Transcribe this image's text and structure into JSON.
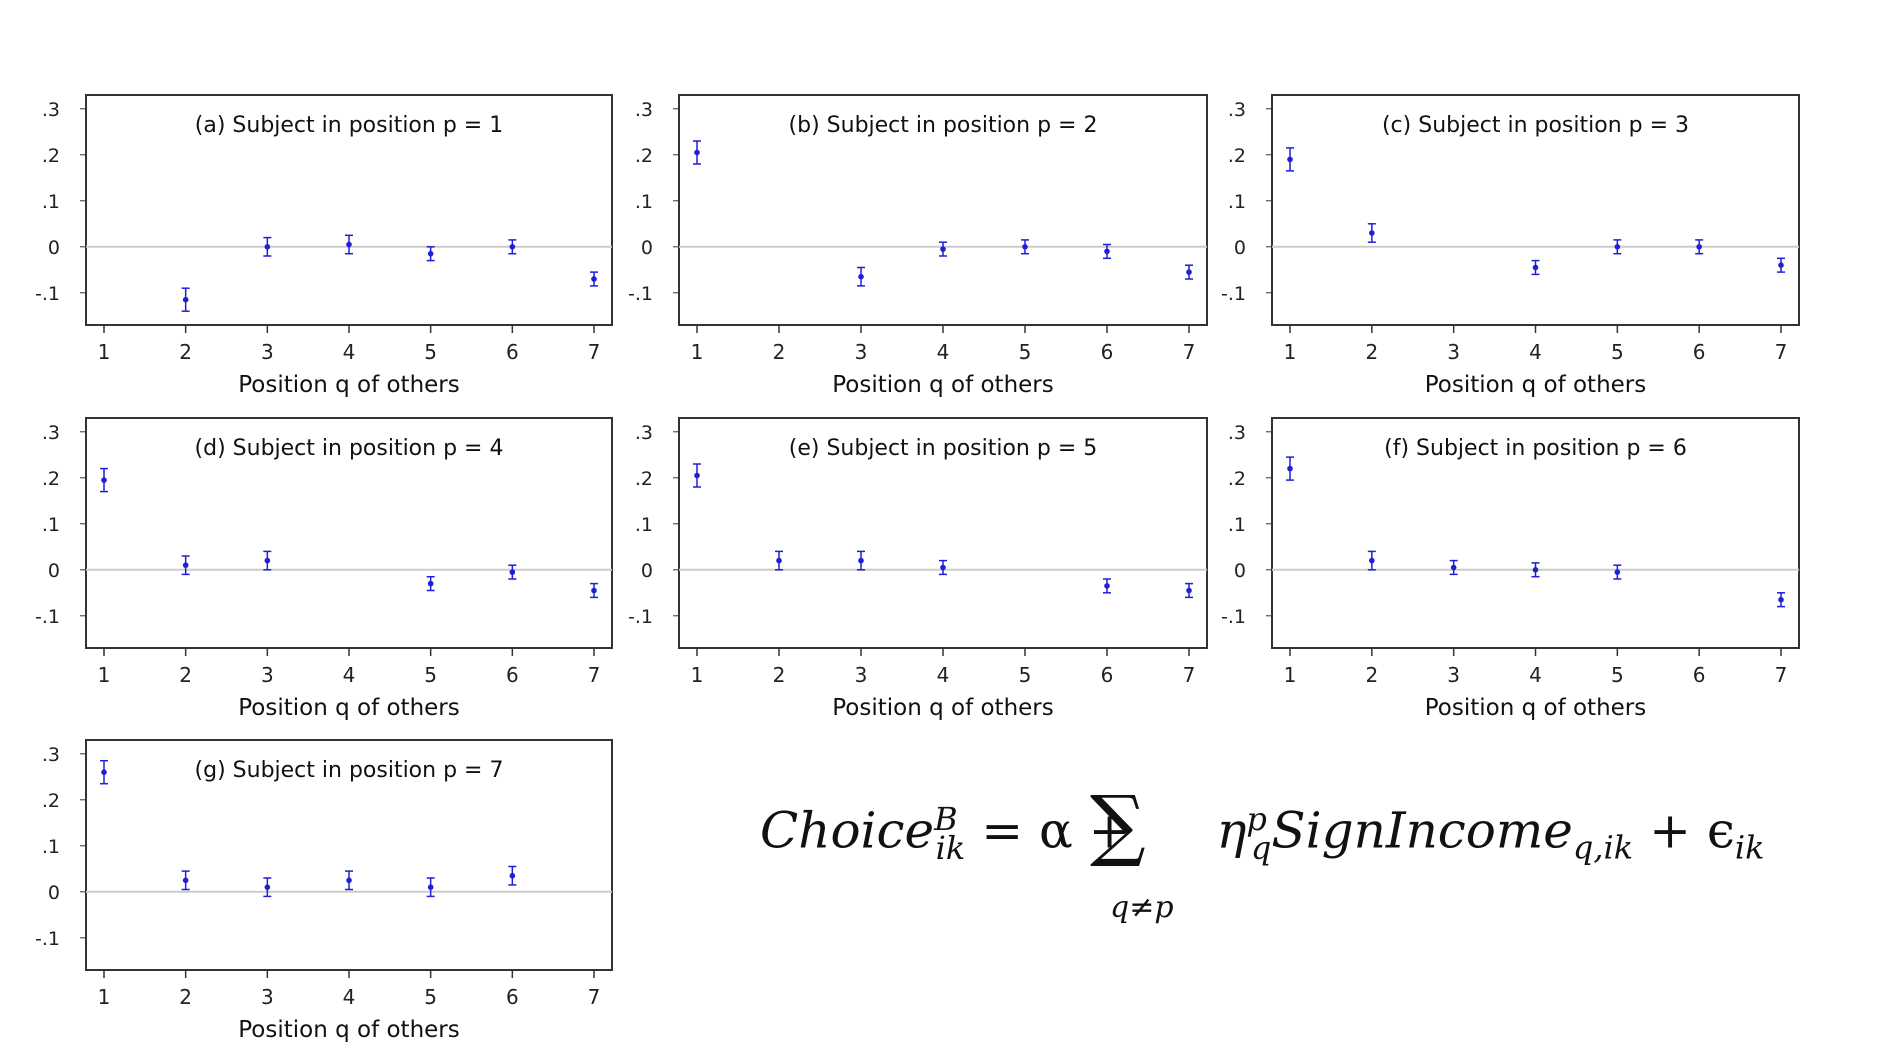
{
  "chart_data": [
    {
      "type": "scatter",
      "title": "(a) Subject in position p = 1",
      "xlabel": "Position q of others",
      "x_ticks": [
        "1",
        "2",
        "3",
        "4",
        "5",
        "6",
        "7"
      ],
      "y_ticks": [
        ".3",
        ".2",
        ".1",
        "0",
        "-.1"
      ],
      "ylim": [
        -0.17,
        0.33
      ],
      "points": [
        {
          "x": 2,
          "y": -0.115,
          "lo": -0.14,
          "hi": -0.09
        },
        {
          "x": 3,
          "y": 0.0,
          "lo": -0.02,
          "hi": 0.02
        },
        {
          "x": 4,
          "y": 0.005,
          "lo": -0.015,
          "hi": 0.025
        },
        {
          "x": 5,
          "y": -0.015,
          "lo": -0.03,
          "hi": 0.0
        },
        {
          "x": 6,
          "y": 0.0,
          "lo": -0.015,
          "hi": 0.015
        },
        {
          "x": 7,
          "y": -0.07,
          "lo": -0.085,
          "hi": -0.055
        }
      ]
    },
    {
      "type": "scatter",
      "title": "(b) Subject in position p = 2",
      "xlabel": "Position q of others",
      "x_ticks": [
        "1",
        "2",
        "3",
        "4",
        "5",
        "6",
        "7"
      ],
      "y_ticks": [
        ".3",
        ".2",
        ".1",
        "0",
        "-.1"
      ],
      "ylim": [
        -0.17,
        0.33
      ],
      "points": [
        {
          "x": 1,
          "y": 0.205,
          "lo": 0.18,
          "hi": 0.23
        },
        {
          "x": 3,
          "y": -0.065,
          "lo": -0.085,
          "hi": -0.045
        },
        {
          "x": 4,
          "y": -0.005,
          "lo": -0.02,
          "hi": 0.01
        },
        {
          "x": 5,
          "y": 0.0,
          "lo": -0.015,
          "hi": 0.015
        },
        {
          "x": 6,
          "y": -0.01,
          "lo": -0.025,
          "hi": 0.005
        },
        {
          "x": 7,
          "y": -0.055,
          "lo": -0.07,
          "hi": -0.04
        }
      ]
    },
    {
      "type": "scatter",
      "title": "(c) Subject in position p = 3",
      "xlabel": "Position q of others",
      "x_ticks": [
        "1",
        "2",
        "3",
        "4",
        "5",
        "6",
        "7"
      ],
      "y_ticks": [
        ".3",
        ".2",
        ".1",
        "0",
        "-.1"
      ],
      "ylim": [
        -0.17,
        0.33
      ],
      "points": [
        {
          "x": 1,
          "y": 0.19,
          "lo": 0.165,
          "hi": 0.215
        },
        {
          "x": 2,
          "y": 0.03,
          "lo": 0.01,
          "hi": 0.05
        },
        {
          "x": 4,
          "y": -0.045,
          "lo": -0.06,
          "hi": -0.03
        },
        {
          "x": 5,
          "y": 0.0,
          "lo": -0.015,
          "hi": 0.015
        },
        {
          "x": 6,
          "y": 0.0,
          "lo": -0.015,
          "hi": 0.015
        },
        {
          "x": 7,
          "y": -0.04,
          "lo": -0.055,
          "hi": -0.025
        }
      ]
    },
    {
      "type": "scatter",
      "title": "(d) Subject in position p = 4",
      "xlabel": "Position q of others",
      "x_ticks": [
        "1",
        "2",
        "3",
        "4",
        "5",
        "6",
        "7"
      ],
      "y_ticks": [
        ".3",
        ".2",
        ".1",
        "0",
        "-.1"
      ],
      "ylim": [
        -0.17,
        0.33
      ],
      "points": [
        {
          "x": 1,
          "y": 0.195,
          "lo": 0.17,
          "hi": 0.22
        },
        {
          "x": 2,
          "y": 0.01,
          "lo": -0.01,
          "hi": 0.03
        },
        {
          "x": 3,
          "y": 0.02,
          "lo": 0.0,
          "hi": 0.04
        },
        {
          "x": 5,
          "y": -0.03,
          "lo": -0.045,
          "hi": -0.015
        },
        {
          "x": 6,
          "y": -0.005,
          "lo": -0.02,
          "hi": 0.01
        },
        {
          "x": 7,
          "y": -0.045,
          "lo": -0.06,
          "hi": -0.03
        }
      ]
    },
    {
      "type": "scatter",
      "title": "(e) Subject in position p = 5",
      "xlabel": "Position q of others",
      "x_ticks": [
        "1",
        "2",
        "3",
        "4",
        "5",
        "6",
        "7"
      ],
      "y_ticks": [
        ".3",
        ".2",
        ".1",
        "0",
        "-.1"
      ],
      "ylim": [
        -0.17,
        0.33
      ],
      "points": [
        {
          "x": 1,
          "y": 0.205,
          "lo": 0.18,
          "hi": 0.23
        },
        {
          "x": 2,
          "y": 0.02,
          "lo": 0.0,
          "hi": 0.04
        },
        {
          "x": 3,
          "y": 0.02,
          "lo": 0.0,
          "hi": 0.04
        },
        {
          "x": 4,
          "y": 0.005,
          "lo": -0.01,
          "hi": 0.02
        },
        {
          "x": 6,
          "y": -0.035,
          "lo": -0.05,
          "hi": -0.02
        },
        {
          "x": 7,
          "y": -0.045,
          "lo": -0.06,
          "hi": -0.03
        }
      ]
    },
    {
      "type": "scatter",
      "title": "(f) Subject in position p = 6",
      "xlabel": "Position q of others",
      "x_ticks": [
        "1",
        "2",
        "3",
        "4",
        "5",
        "6",
        "7"
      ],
      "y_ticks": [
        ".3",
        ".2",
        ".1",
        "0",
        "-.1"
      ],
      "ylim": [
        -0.17,
        0.33
      ],
      "points": [
        {
          "x": 1,
          "y": 0.22,
          "lo": 0.195,
          "hi": 0.245
        },
        {
          "x": 2,
          "y": 0.02,
          "lo": 0.0,
          "hi": 0.04
        },
        {
          "x": 3,
          "y": 0.005,
          "lo": -0.01,
          "hi": 0.02
        },
        {
          "x": 4,
          "y": 0.0,
          "lo": -0.015,
          "hi": 0.015
        },
        {
          "x": 5,
          "y": -0.005,
          "lo": -0.02,
          "hi": 0.01
        },
        {
          "x": 7,
          "y": -0.065,
          "lo": -0.08,
          "hi": -0.05
        }
      ]
    },
    {
      "type": "scatter",
      "title": "(g) Subject in position p = 7",
      "xlabel": "Position q of others",
      "x_ticks": [
        "1",
        "2",
        "3",
        "4",
        "5",
        "6",
        "7"
      ],
      "y_ticks": [
        ".3",
        ".2",
        ".1",
        "0",
        "-.1"
      ],
      "ylim": [
        -0.17,
        0.33
      ],
      "points": [
        {
          "x": 1,
          "y": 0.26,
          "lo": 0.235,
          "hi": 0.285
        },
        {
          "x": 2,
          "y": 0.025,
          "lo": 0.005,
          "hi": 0.045
        },
        {
          "x": 3,
          "y": 0.01,
          "lo": -0.01,
          "hi": 0.03
        },
        {
          "x": 4,
          "y": 0.025,
          "lo": 0.005,
          "hi": 0.045
        },
        {
          "x": 5,
          "y": 0.01,
          "lo": -0.01,
          "hi": 0.03
        },
        {
          "x": 6,
          "y": 0.035,
          "lo": 0.015,
          "hi": 0.055
        }
      ]
    }
  ],
  "colors": {
    "marker": "#1f1fd6",
    "frame": "#333333",
    "zero_line": "#cccccc"
  },
  "formula": {
    "lhs": "Choice",
    "lhs_sup": "B",
    "lhs_sub": "ik",
    "eq": " = α + ",
    "sum_symbol": "∑",
    "sum_sub": "q≠p",
    "eta": "η",
    "eta_sup": "p",
    "eta_sub": "q",
    "income": "SignIncome",
    "income_sub": "q,ik",
    "plus_eps": " + ϵ",
    "eps_sub": "ik"
  }
}
